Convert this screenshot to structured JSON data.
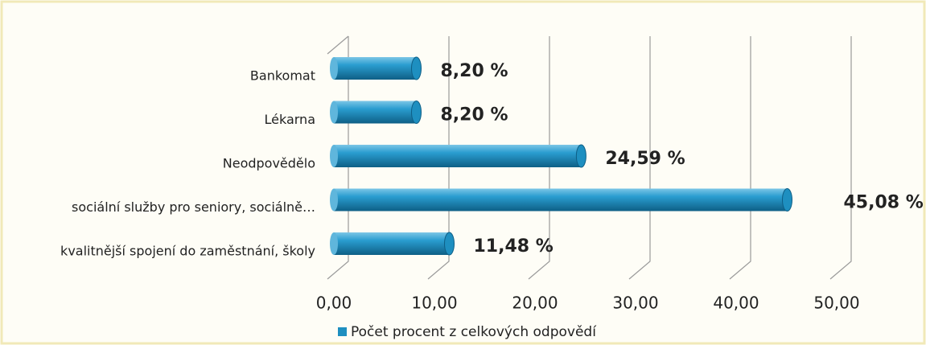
{
  "chart_data": {
    "type": "bar",
    "orientation": "horizontal",
    "categories": [
      "Bankomat",
      "Lékarna",
      "Neodpovědělo",
      "sociální služby pro seniory, sociálně…",
      "kvalitnější spojení do zaměstnání, školy"
    ],
    "series": [
      {
        "name": "Počet procent z celkových odpovědí",
        "color": "#1e8fc0",
        "values": [
          8.2,
          8.2,
          24.59,
          45.08,
          11.48
        ],
        "value_labels": [
          "8,20 %",
          "8,20 %",
          "24,59 %",
          "45,08 %",
          "11,48 %"
        ]
      }
    ],
    "xlim": [
      0,
      50
    ],
    "xticks": [
      {
        "value": 0,
        "label": "0,00"
      },
      {
        "value": 10,
        "label": "10,00"
      },
      {
        "value": 20,
        "label": "20,00"
      },
      {
        "value": 30,
        "label": "30,00"
      },
      {
        "value": 40,
        "label": "40,00"
      },
      {
        "value": 50,
        "label": "50,00"
      }
    ],
    "grid": true,
    "legend": "bottom"
  }
}
